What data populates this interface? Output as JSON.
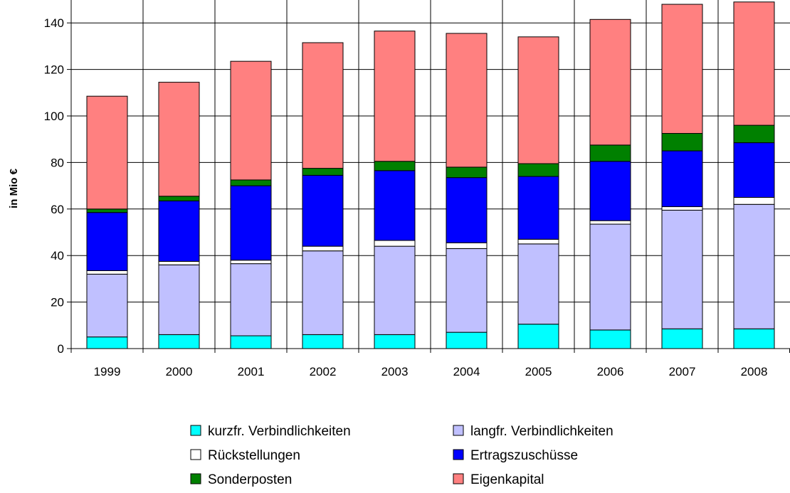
{
  "chart_data": {
    "type": "bar",
    "stacked": true,
    "categories": [
      "1999",
      "2000",
      "2001",
      "2002",
      "2003",
      "2004",
      "2005",
      "2006",
      "2007",
      "2008"
    ],
    "series": [
      {
        "name": "kurzfr. Verbindlichkeiten",
        "color": "#00ffff",
        "values": [
          5,
          6,
          5.5,
          6,
          6,
          7,
          10.5,
          8,
          8.5,
          8.5
        ]
      },
      {
        "name": "langfr. Verbindlichkeiten",
        "color": "#c0c0ff",
        "values": [
          27,
          30,
          31,
          36,
          38,
          36,
          34.5,
          45.5,
          51,
          53.5
        ]
      },
      {
        "name": "Rückstellungen",
        "color": "#ffffff",
        "values": [
          1.5,
          1.5,
          1.5,
          2,
          2.5,
          2.5,
          2,
          1.5,
          1.5,
          3
        ]
      },
      {
        "name": "Ertragszuschüsse",
        "color": "#0000ff",
        "values": [
          25,
          26,
          32,
          30.5,
          30,
          28,
          27,
          25.5,
          24,
          23.5
        ]
      },
      {
        "name": "Sonderposten",
        "color": "#008000",
        "values": [
          1.5,
          2,
          2.5,
          3,
          4,
          4.5,
          5.5,
          7,
          7.5,
          7.5
        ]
      },
      {
        "name": "Eigenkapital",
        "color": "#ff8080",
        "values": [
          48.5,
          49,
          51,
          54,
          56,
          57.5,
          54.5,
          54,
          55.5,
          53
        ]
      }
    ],
    "title": "",
    "xlabel": "",
    "ylabel": "in Mio €",
    "ylim": [
      0,
      150
    ],
    "yticks": [
      "0",
      "20",
      "40",
      "60",
      "80",
      "100",
      "120",
      "140"
    ],
    "grid": true,
    "legend_position": "bottom"
  }
}
